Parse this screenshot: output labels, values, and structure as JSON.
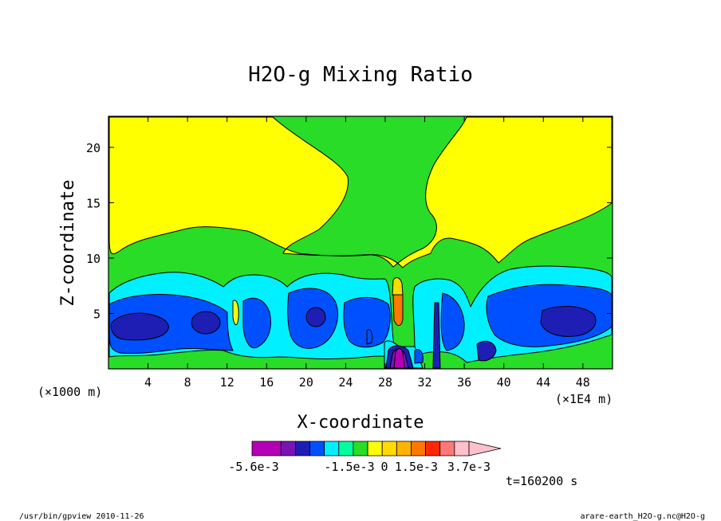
{
  "chart_data": {
    "type": "heatmap",
    "title": "H2O-g Mixing Ratio",
    "xlabel": "X-coordinate",
    "ylabel": "Z-coordinate",
    "x_unit_left": "(×1000 m)",
    "x_unit_right": "(×1E4 m)",
    "x_ticks": [
      4,
      8,
      12,
      16,
      20,
      24,
      28,
      32,
      36,
      40,
      44,
      48
    ],
    "y_ticks": [
      5,
      10,
      15,
      20
    ],
    "xlim": [
      0,
      51
    ],
    "ylim": [
      0,
      22.8
    ],
    "colorbar": {
      "colors": [
        "#b400b4",
        "#b400b4",
        "#7814b4",
        "#1e1eb4",
        "#0050ff",
        "#00f0ff",
        "#00ffa0",
        "#28dc28",
        "#ffff00",
        "#ffdc00",
        "#ffb400",
        "#ff7800",
        "#ff2800",
        "#ff7878",
        "#ffc0cb"
      ],
      "labels": [
        "-5.6e-3",
        "-1.5e-3",
        "0",
        "1.5e-3",
        "3.7e-3"
      ]
    },
    "time_label": "t=160200 s"
  },
  "footer": {
    "left": "/usr/bin/gpview  2010-11-26",
    "right": "arare-earth_H2O-g.nc@H2O-g"
  }
}
